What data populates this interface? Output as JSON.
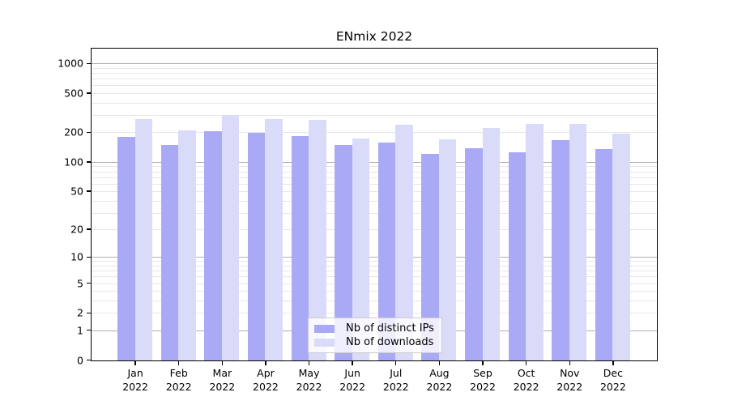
{
  "chart_data": {
    "type": "bar",
    "title": "ENmix 2022",
    "x_categories": [
      "Jan",
      "Feb",
      "Mar",
      "Apr",
      "May",
      "Jun",
      "Jul",
      "Aug",
      "Sep",
      "Oct",
      "Nov",
      "Dec"
    ],
    "x_year": "2022",
    "series": [
      {
        "name": "Nb of distinct IPs",
        "color": "#a9a9f5",
        "values": [
          182,
          149,
          206,
          201,
          184,
          151,
          158,
          122,
          139,
          126,
          168,
          137
        ]
      },
      {
        "name": "Nb of downloads",
        "color": "#dadaf9",
        "values": [
          274,
          210,
          303,
          278,
          273,
          176,
          242,
          171,
          225,
          244,
          244,
          196
        ]
      }
    ],
    "yscale": "log1p",
    "ylim": [
      0,
      1400
    ],
    "y_ticks": [
      0,
      1,
      2,
      5,
      10,
      20,
      50,
      100,
      200,
      500,
      1000
    ],
    "y_major_gridlines": [
      1,
      10,
      100,
      1000
    ],
    "y_minor_gridlines": [
      2,
      3,
      4,
      5,
      6,
      7,
      8,
      9,
      20,
      30,
      40,
      50,
      60,
      70,
      80,
      90,
      200,
      300,
      400,
      500,
      600,
      700,
      800,
      900
    ],
    "grid": true,
    "legend_position": "lower-center"
  },
  "colors": {
    "grid_major": "#b0b0b0",
    "grid_minor": "#e7e7e7",
    "spine": "#000000",
    "background": "#ffffff"
  }
}
